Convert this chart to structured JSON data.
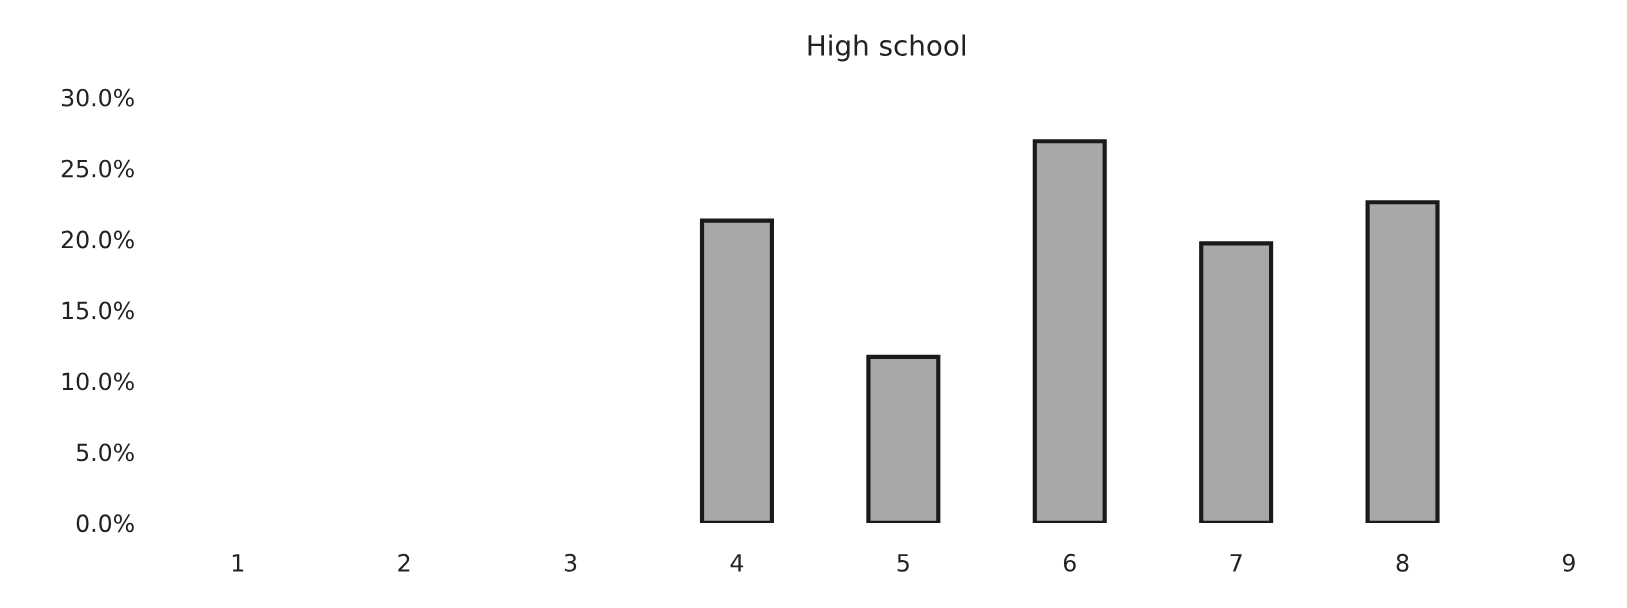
{
  "chart_data": {
    "type": "bar",
    "title": "High school",
    "categories": [
      "1",
      "2",
      "3",
      "4",
      "5",
      "6",
      "7",
      "8",
      "9"
    ],
    "values": [
      0,
      0,
      0,
      21.3,
      11.7,
      26.9,
      19.7,
      22.6,
      0
    ],
    "color": "#a8a8a8",
    "ylim": [
      0,
      30
    ],
    "yticks": [
      {
        "value": 0,
        "label": "0.0%"
      },
      {
        "value": 5,
        "label": "5.0%"
      },
      {
        "value": 10,
        "label": "10.0%"
      },
      {
        "value": 15,
        "label": "15.0%"
      },
      {
        "value": 20,
        "label": "20.0%"
      },
      {
        "value": 25,
        "label": "25.0%"
      },
      {
        "value": 30,
        "label": "30.0%"
      }
    ],
    "grid": false,
    "legend": false
  }
}
